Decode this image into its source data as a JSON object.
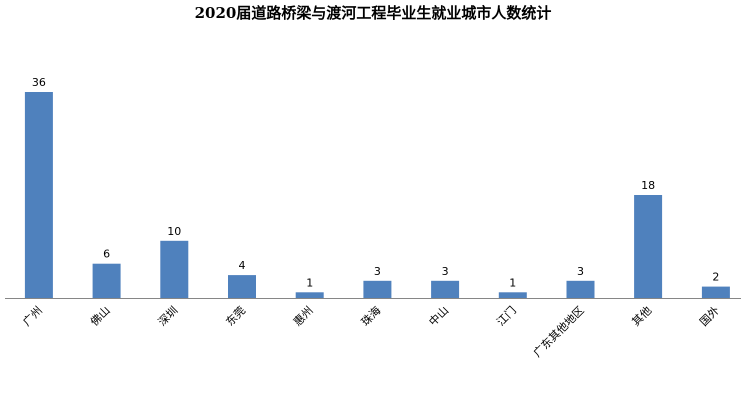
{
  "chart_data": {
    "type": "bar",
    "title": "2020届道路桥梁与渡河工程毕业生就业城市人数统计",
    "categories": [
      "广州",
      "佛山",
      "深圳",
      "东莞",
      "惠州",
      "珠海",
      "中山",
      "江门",
      "广东其他地区",
      "其他",
      "国外"
    ],
    "values": [
      36,
      6,
      10,
      4,
      1,
      3,
      3,
      1,
      3,
      18,
      2
    ],
    "xlabel": "",
    "ylabel": "",
    "ylim": [
      0,
      36
    ],
    "grid": false,
    "legend": "none",
    "bar_color": "#4f81bd"
  }
}
